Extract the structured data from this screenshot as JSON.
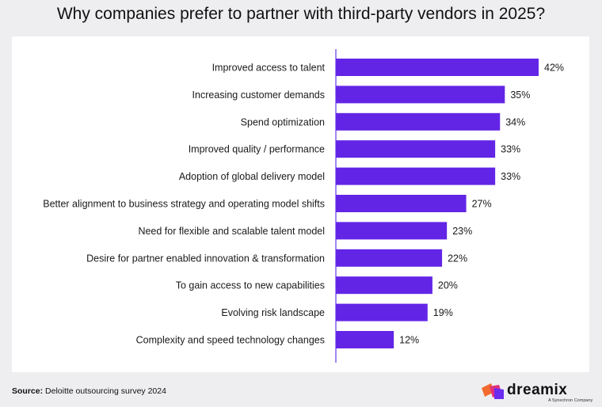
{
  "page": {
    "title": "Why companies prefer to partner with third-party vendors in 2025?",
    "source_label": "Source:",
    "source_text": "Deloitte outsourcing survey 2024",
    "brand_name": "dreamix",
    "brand_tagline": "A Synechron Company"
  },
  "colors": {
    "bar": "#6225e6",
    "axis": "#7a55e8",
    "logo_orange": "#f26a2e",
    "logo_pink": "#e1307a",
    "logo_purple": "#6a2cf0"
  },
  "chart_data": {
    "type": "bar",
    "orientation": "horizontal",
    "title": "Why companies prefer to partner with third-party vendors in 2025?",
    "categories": [
      "Improved access to talent",
      "Increasing customer demands",
      "Spend optimization",
      "Improved quality / performance",
      "Adoption of global delivery model",
      "Better alignment to business strategy and operating model shifts",
      "Need for flexible and scalable talent model",
      "Desire for partner enabled innovation & transformation",
      "To gain access to new capabilities",
      "Evolving risk landscape",
      "Complexity and speed technology changes"
    ],
    "values": [
      42,
      35,
      34,
      33,
      33,
      27,
      23,
      22,
      20,
      19,
      12
    ],
    "data_labels": [
      "42%",
      "35%",
      "34%",
      "33%",
      "33%",
      "27%",
      "23%",
      "22%",
      "20%",
      "19%",
      "12%"
    ],
    "unit": "%",
    "xlim": [
      0,
      42
    ],
    "xlabel": "",
    "ylabel": "",
    "grid": false,
    "legend": "none"
  }
}
